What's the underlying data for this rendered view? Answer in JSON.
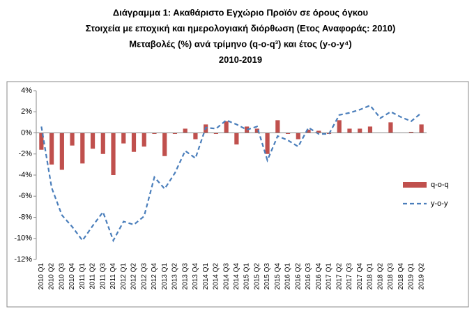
{
  "chart_data": {
    "type": "bar_line",
    "title": [
      "Διάγραμμα 1: Ακαθάριστο Εγχώριο Προϊόν σε όρους όγκου",
      "Στοιχεία με εποχική και ημερολογιακή διόρθωση (Ετος Αναφοράς: 2010)",
      "Μεταβολές (%) ανά τρίμηνο (q-o-q³) και έτος (y-o-y⁴)",
      "2010-2019"
    ],
    "categories": [
      "2010 Q1",
      "2010 Q2",
      "2010 Q3",
      "2010 Q4",
      "2011 Q1",
      "2011 Q2",
      "2011 Q3",
      "2011 Q4",
      "2012 Q1",
      "2012 Q2",
      "2012 Q3",
      "2012 Q4",
      "2013 Q1",
      "2013 Q2",
      "2013 Q3",
      "2013 Q4",
      "2014 Q1",
      "2014 Q2",
      "2014 Q3",
      "2014 Q4",
      "2015 Q1",
      "2015 Q2",
      "2015 Q3",
      "2015 Q4",
      "2016 Q1",
      "2016 Q2",
      "2016 Q3",
      "2016 Q4",
      "2017 Q1",
      "2017 Q2",
      "2017 Q3",
      "2017 Q4",
      "2018 Q1",
      "2018 Q2",
      "2018 Q3",
      "2018 Q4",
      "2019 Q1",
      "2019 Q2"
    ],
    "series": [
      {
        "name": "q-o-q",
        "type": "bar",
        "color": "#c0504d",
        "values": [
          -1.6,
          -3.0,
          -3.5,
          -1.2,
          -2.9,
          -1.5,
          -2.0,
          -4.0,
          -1.0,
          -1.8,
          -1.3,
          -0.1,
          -2.2,
          -0.1,
          0.4,
          -0.6,
          0.8,
          -0.1,
          1.1,
          -1.1,
          0.6,
          0.4,
          -2.0,
          1.2,
          -0.1,
          -0.6,
          0.3,
          0.2,
          -0.1,
          1.2,
          0.4,
          0.4,
          0.6,
          0.0,
          1.0,
          0.0,
          0.1,
          0.8
        ]
      },
      {
        "name": "y-o-y",
        "type": "line",
        "color": "#4a7ebb",
        "dashed": true,
        "values": [
          0.6,
          -5.2,
          -7.8,
          -8.9,
          -10.2,
          -8.8,
          -7.5,
          -10.2,
          -8.4,
          -8.7,
          -7.9,
          -4.2,
          -5.3,
          -3.8,
          -1.7,
          -2.4,
          0.5,
          0.4,
          1.2,
          0.8,
          0.3,
          0.6,
          -2.6,
          -0.3,
          -0.7,
          -1.3,
          0.5,
          -0.1,
          -0.1,
          1.7,
          1.9,
          2.2,
          2.6,
          1.4,
          2.0,
          1.5,
          1.1,
          1.9
        ]
      }
    ],
    "ylim": [
      -12,
      4
    ],
    "yticks": [
      {
        "value": 4,
        "label": "4%"
      },
      {
        "value": 2,
        "label": "2%"
      },
      {
        "value": 0,
        "label": "0%"
      },
      {
        "value": -2,
        "label": "-2%"
      },
      {
        "value": -4,
        "label": "-4%"
      },
      {
        "value": -6,
        "label": "-6%"
      },
      {
        "value": -8,
        "label": "-8%"
      },
      {
        "value": -10,
        "label": "-10%"
      },
      {
        "value": -12,
        "label": "-12%"
      }
    ],
    "grid": false,
    "legend": "right"
  }
}
